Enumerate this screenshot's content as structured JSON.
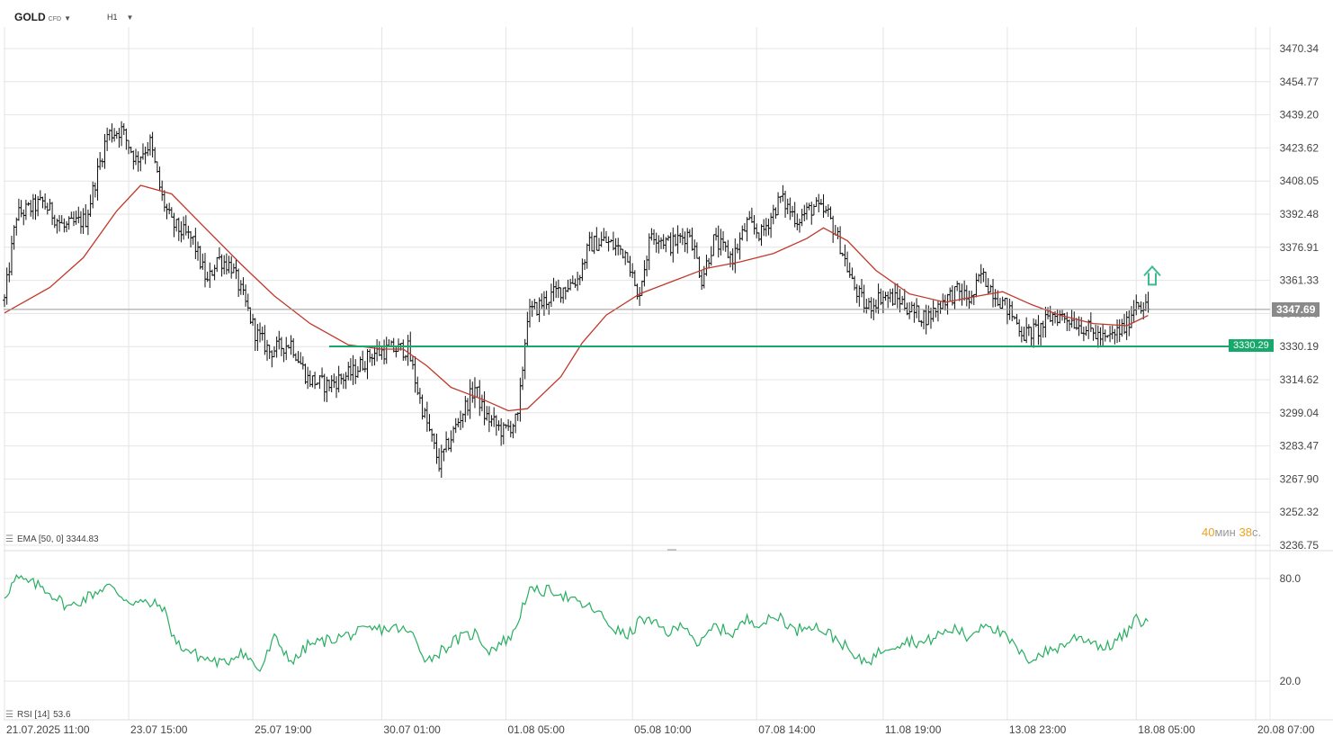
{
  "toolbar": {
    "symbol": "GOLD",
    "symbol_type": "CFD",
    "timeframe": "H1"
  },
  "current_price": "3347.69",
  "level_price": "3330.29",
  "indicators": {
    "ema_label": "EMA [50, 0] 3344.83",
    "rsi_label": "RSI [14]",
    "rsi_value": "53.6"
  },
  "timer": {
    "min_value": "40",
    "min_unit": "мин",
    "sec_value": "38",
    "sec_unit": "с."
  },
  "colors": {
    "ema": "#c0392b",
    "rsi": "#27ae60",
    "level": "#17a86b",
    "price_badge": "#888888",
    "arrow": "#3dbb8f"
  },
  "chart_data": [
    {
      "type": "ohlc",
      "series": [
        {
          "name": "GOLD"
        },
        {
          "name": "EMA [50, 0]"
        }
      ],
      "ylim": [
        3236.75,
        3470.34
      ],
      "y_ticks": [
        "3470.34",
        "3454.77",
        "3439.20",
        "3423.62",
        "3408.05",
        "3392.48",
        "3376.91",
        "3361.33",
        "3345.76",
        "3330.19",
        "3314.62",
        "3299.04",
        "3283.47",
        "3267.90",
        "3252.32",
        "3236.75"
      ],
      "x_ticks": [
        "21.07.2025 11:00",
        "23.07 15:00",
        "25.07 19:00",
        "30.07 01:00",
        "01.08 05:00",
        "05.08 10:00",
        "07.08 14:00",
        "11.08 19:00",
        "13.08 23:00",
        "18.08 05:00",
        "20.08 07:00"
      ],
      "price_path": [
        [
          "21.07.2025 11:00",
          3352
        ],
        [
          "21.07 16:00",
          3392
        ],
        [
          "22.07 03:00",
          3398
        ],
        [
          "22.07 12:00",
          3386
        ],
        [
          "22.07 21:00",
          3390
        ],
        [
          "23.07 06:00",
          3430
        ],
        [
          "23.07 12:00",
          3432
        ],
        [
          "23.07 18:00",
          3418
        ],
        [
          "24.07 00:00",
          3426
        ],
        [
          "24.07 05:00",
          3400
        ],
        [
          "24.07 09:00",
          3388
        ],
        [
          "24.07 18:00",
          3380
        ],
        [
          "25.07 00:00",
          3360
        ],
        [
          "25.07 04:00",
          3372
        ],
        [
          "25.07 10:00",
          3368
        ],
        [
          "25.07 16:00",
          3350
        ],
        [
          "25.07 20:00",
          3337
        ],
        [
          "28.07 02:00",
          3328
        ],
        [
          "28.07 11:00",
          3332
        ],
        [
          "28.07 18:00",
          3315
        ],
        [
          "29.07 02:00",
          3312
        ],
        [
          "29.07 13:00",
          3318
        ],
        [
          "29.07 21:00",
          3327
        ],
        [
          "30.07 06:00",
          3329
        ],
        [
          "30.07 12:00",
          3329
        ],
        [
          "30.07 17:00",
          3305
        ],
        [
          "31.07 01:00",
          3275
        ],
        [
          "31.07 09:00",
          3295
        ],
        [
          "31.07 16:00",
          3311
        ],
        [
          "31.07 20:00",
          3298
        ],
        [
          "01.08 04:00",
          3290
        ],
        [
          "01.08 10:00",
          3296
        ],
        [
          "01.08 14:00",
          3345
        ],
        [
          "04.08 01:00",
          3355
        ],
        [
          "04.08 11:00",
          3362
        ],
        [
          "04.08 16:00",
          3378
        ],
        [
          "04.08 22:00",
          3380
        ],
        [
          "05.08 08:00",
          3374
        ],
        [
          "05.08 12:00",
          3352
        ],
        [
          "05.08 18:00",
          3384
        ],
        [
          "06.08 02:00",
          3378
        ],
        [
          "06.08 10:00",
          3384
        ],
        [
          "06.08 15:00",
          3362
        ],
        [
          "06.08 20:00",
          3380
        ],
        [
          "07.08 04:00",
          3372
        ],
        [
          "07.08 10:00",
          3388
        ],
        [
          "07.08 16:00",
          3383
        ],
        [
          "08.08 00:00",
          3400
        ],
        [
          "08.08 07:00",
          3390
        ],
        [
          "08.08 14:00",
          3396
        ],
        [
          "08.08 20:00",
          3392
        ],
        [
          "11.08 01:00",
          3378
        ],
        [
          "11.08 06:00",
          3360
        ],
        [
          "11.08 12:00",
          3348
        ],
        [
          "11.08 18:00",
          3354
        ],
        [
          "12.08 02:00",
          3352
        ],
        [
          "12.08 08:00",
          3346
        ],
        [
          "12.08 14:00",
          3344
        ],
        [
          "12.08 20:00",
          3352
        ],
        [
          "13.08 02:00",
          3356
        ],
        [
          "13.08 08:00",
          3352
        ],
        [
          "13.08 12:00",
          3364
        ],
        [
          "13.08 18:00",
          3355
        ],
        [
          "14.08 01:00",
          3345
        ],
        [
          "14.08 06:00",
          3336
        ],
        [
          "14.08 12:00",
          3338
        ],
        [
          "14.08 18:00",
          3345
        ],
        [
          "15.08 00:00",
          3344
        ],
        [
          "15.08 06:00",
          3340
        ],
        [
          "15.08 12:00",
          3336
        ],
        [
          "15.08 16:00",
          3333
        ],
        [
          "18.08 01:00",
          3340
        ],
        [
          "18.08 05:00",
          3352
        ],
        [
          "18.08 10:00",
          3347.69
        ]
      ],
      "ema_path": [
        [
          "21.07.2025 11:00",
          3346
        ],
        [
          "22.07 06:00",
          3358
        ],
        [
          "22.07 20:00",
          3372
        ],
        [
          "23.07 10:00",
          3394
        ],
        [
          "23.07 20:00",
          3406
        ],
        [
          "24.07 09:00",
          3402
        ],
        [
          "24.07 23:00",
          3386
        ],
        [
          "25.07 14:00",
          3369
        ],
        [
          "28.07 04:00",
          3354
        ],
        [
          "28.07 19:00",
          3341
        ],
        [
          "29.07 11:00",
          3331
        ],
        [
          "30.07 01:00",
          3329
        ],
        [
          "30.07 10:00",
          3329
        ],
        [
          "30.07 20:00",
          3321
        ],
        [
          "31.07 06:00",
          3311
        ],
        [
          "31.07 20:00",
          3305
        ],
        [
          "01.08 06:00",
          3300
        ],
        [
          "01.08 14:00",
          3301
        ],
        [
          "04.08 04:00",
          3316
        ],
        [
          "04.08 13:00",
          3332
        ],
        [
          "04.08 23:00",
          3345
        ],
        [
          "05.08 13:00",
          3355
        ],
        [
          "06.08 03:00",
          3361
        ],
        [
          "06.08 17:00",
          3367
        ],
        [
          "07.08 07:00",
          3370
        ],
        [
          "07.08 21:00",
          3374
        ],
        [
          "08.08 11:00",
          3381
        ],
        [
          "08.08 18:00",
          3386
        ],
        [
          "11.08 04:00",
          3380
        ],
        [
          "11.08 16:00",
          3366
        ],
        [
          "12.08 06:00",
          3355
        ],
        [
          "12.08 21:00",
          3351
        ],
        [
          "13.08 11:00",
          3354
        ],
        [
          "13.08 21:00",
          3356
        ],
        [
          "14.08 09:00",
          3350
        ],
        [
          "14.08 21:00",
          3345
        ],
        [
          "15.08 11:00",
          3341
        ],
        [
          "18.08 01:00",
          3340
        ],
        [
          "18.08 10:00",
          3344.83
        ]
      ]
    },
    {
      "type": "line",
      "series": [
        {
          "name": "RSI [14]"
        }
      ],
      "y_ticks": [
        "80.0",
        "20.0"
      ],
      "ylim": [
        10,
        90
      ],
      "values_path": [
        [
          "21.07.2025 11:00",
          70
        ],
        [
          "21.07 16:00",
          80
        ],
        [
          "22.07 03:00",
          75
        ],
        [
          "22.07 14:00",
          63
        ],
        [
          "23.07 06:00",
          76
        ],
        [
          "23.07 15:00",
          67
        ],
        [
          "24.07 05:00",
          64
        ],
        [
          "24.07 11:00",
          42
        ],
        [
          "24.07 21:00",
          34
        ],
        [
          "25.07 07:00",
          30
        ],
        [
          "25.07 14:00",
          38
        ],
        [
          "25.07 22:00",
          26
        ],
        [
          "28.07 04:00",
          45
        ],
        [
          "28.07 12:00",
          31
        ],
        [
          "28.07 18:00",
          41
        ],
        [
          "29.07 08:00",
          46
        ],
        [
          "29.07 20:00",
          50
        ],
        [
          "30.07 08:00",
          51
        ],
        [
          "30.07 14:00",
          47
        ],
        [
          "30.07 20:00",
          32
        ],
        [
          "31.07 08:00",
          44
        ],
        [
          "31.07 16:00",
          48
        ],
        [
          "31.07 22:00",
          38
        ],
        [
          "01.08 08:00",
          47
        ],
        [
          "01.08 14:00",
          72
        ],
        [
          "04.08 02:00",
          73
        ],
        [
          "04.08 10:00",
          66
        ],
        [
          "04.08 18:00",
          62
        ],
        [
          "05.08 02:00",
          51
        ],
        [
          "05.08 08:00",
          46
        ],
        [
          "05.08 14:00",
          57
        ],
        [
          "06.08 02:00",
          48
        ],
        [
          "06.08 08:00",
          54
        ],
        [
          "06.08 14:00",
          40
        ],
        [
          "06.08 20:00",
          52
        ],
        [
          "07.08 04:00",
          48
        ],
        [
          "07.08 10:00",
          56
        ],
        [
          "07.08 16:00",
          54
        ],
        [
          "08.08 00:00",
          58
        ],
        [
          "08.08 06:00",
          49
        ],
        [
          "08.08 12:00",
          54
        ],
        [
          "08.08 20:00",
          48
        ],
        [
          "11.08 02:00",
          42
        ],
        [
          "11.08 08:00",
          32
        ],
        [
          "11.08 14:00",
          33
        ],
        [
          "11.08 20:00",
          40
        ],
        [
          "12.08 06:00",
          44
        ],
        [
          "12.08 12:00",
          42
        ],
        [
          "12.08 18:00",
          47
        ],
        [
          "13.08 02:00",
          51
        ],
        [
          "13.08 06:00",
          45
        ],
        [
          "13.08 14:00",
          55
        ],
        [
          "14.08 01:00",
          42
        ],
        [
          "14.08 07:00",
          32
        ],
        [
          "14.08 13:00",
          36
        ],
        [
          "14.08 21:00",
          40
        ],
        [
          "15.08 04:00",
          46
        ],
        [
          "15.08 10:00",
          44
        ],
        [
          "15.08 16:00",
          39
        ],
        [
          "18.08 01:00",
          48
        ],
        [
          "18.08 05:00",
          56
        ],
        [
          "18.08 10:00",
          53.6
        ]
      ]
    }
  ]
}
